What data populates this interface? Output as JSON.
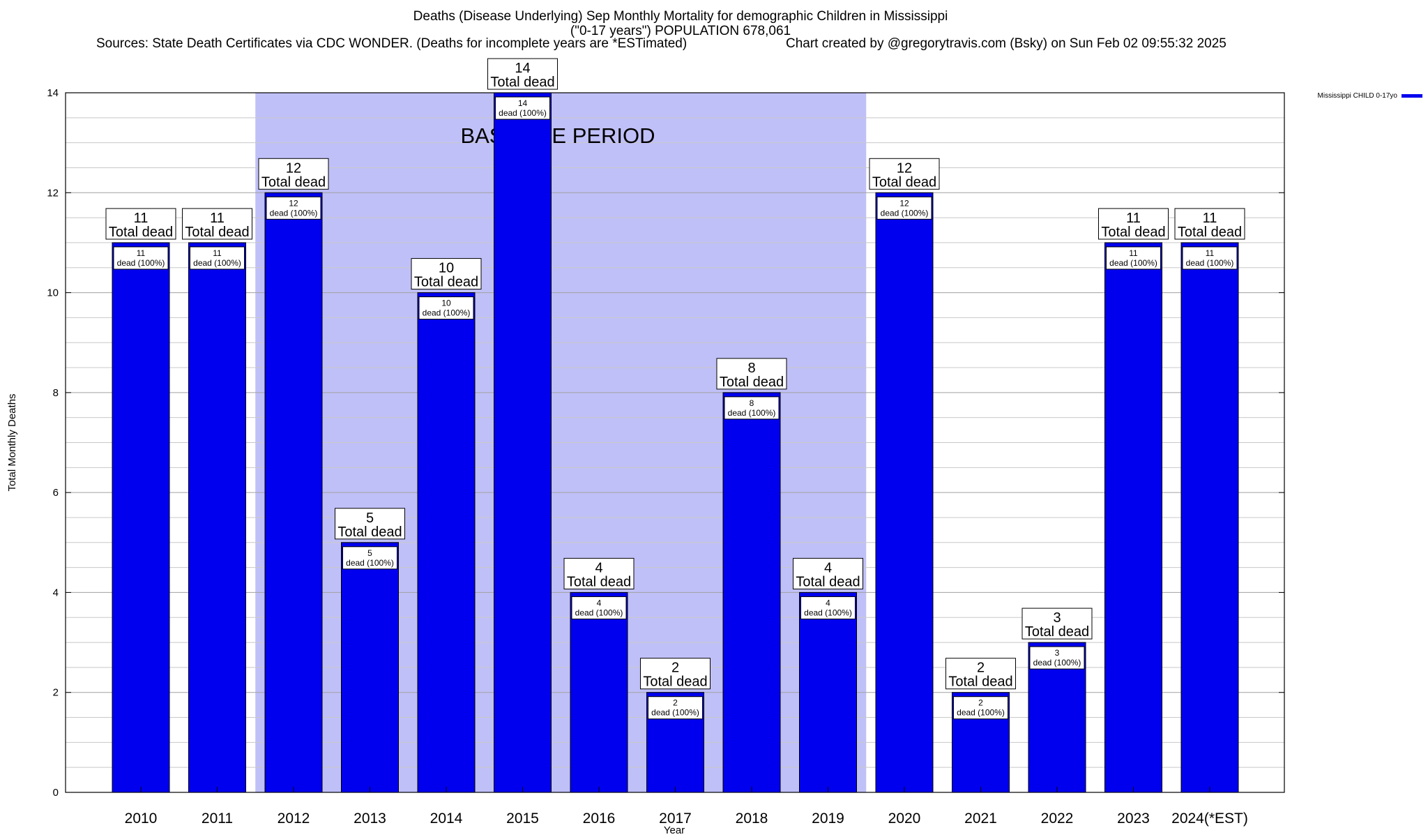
{
  "header": {
    "title": "Deaths (Disease Underlying) Sep Monthly Mortality for demographic Children in Mississippi",
    "subtitle": "(\"0-17 years\") POPULATION 678,061",
    "sources": "Sources: State Death Certificates via CDC WONDER. (Deaths for incomplete years are *ESTimated)",
    "credit": "Chart created by @gregorytravis.com (Bsky) on Sun Feb 02 09:55:32 2025"
  },
  "chart_data": {
    "type": "bar",
    "categories": [
      "2010",
      "2011",
      "2012",
      "2013",
      "2014",
      "2015",
      "2016",
      "2017",
      "2018",
      "2019",
      "2020",
      "2021",
      "2022",
      "2023",
      "2024(*EST)"
    ],
    "series": [
      {
        "name": "Mississippi CHILD 0-17yo",
        "values": [
          11,
          11,
          12,
          5,
          10,
          14,
          4,
          2,
          8,
          4,
          12,
          2,
          3,
          11,
          11
        ],
        "color": "#0000ee"
      }
    ],
    "total_label_suffix": "Total dead",
    "inner_label_suffix": "dead (100%)",
    "xlabel": "Year",
    "ylabel": "Total Monthly Deaths",
    "ylim": [
      0,
      14
    ],
    "yticks": [
      0,
      2,
      4,
      6,
      8,
      10,
      12,
      14
    ],
    "grid": true,
    "legend_position": "top-right",
    "baseline_period": {
      "label": "BASELINE PERIOD",
      "start": "2012",
      "end": "2019",
      "color": "#c0c0f8"
    }
  }
}
